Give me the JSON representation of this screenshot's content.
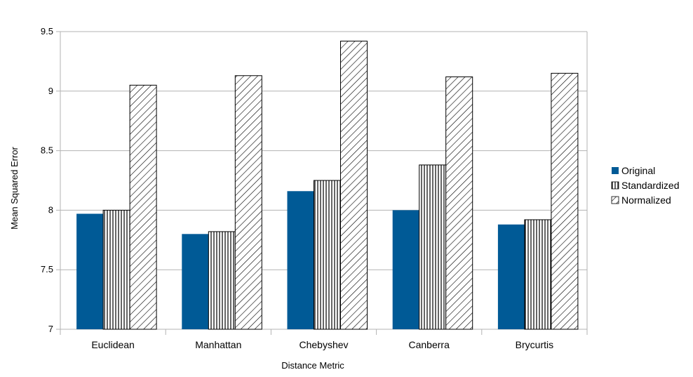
{
  "chart_data": {
    "type": "bar",
    "title": "",
    "xlabel": "Distance Metric",
    "ylabel": "Mean Squared Error",
    "categories": [
      "Euclidean",
      "Manhattan",
      "Chebyshev",
      "Canberra",
      "Brycurtis"
    ],
    "series": [
      {
        "name": "Original",
        "pattern": "solid",
        "color": "#005a96",
        "values": [
          7.97,
          7.8,
          8.16,
          8.0,
          7.88
        ]
      },
      {
        "name": "Standardized",
        "pattern": "vertical-lines",
        "color": "#000000",
        "values": [
          8.0,
          7.82,
          8.25,
          8.38,
          7.92
        ]
      },
      {
        "name": "Normalized",
        "pattern": "diagonal-lines",
        "color": "#000000",
        "values": [
          9.05,
          9.13,
          9.42,
          9.12,
          9.15
        ]
      }
    ],
    "ylim": [
      7,
      9.5
    ],
    "yticks": [
      "7",
      "7.5",
      "8",
      "8.5",
      "9",
      "9.5"
    ],
    "grid": true,
    "legend_position": "right"
  }
}
